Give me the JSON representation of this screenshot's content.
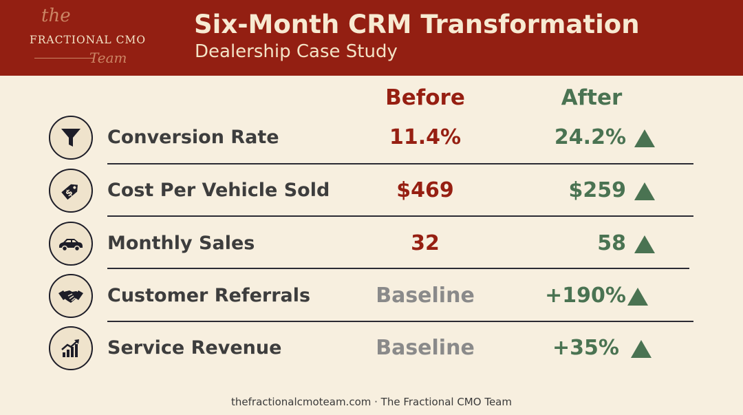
{
  "header": {
    "logo": {
      "the": "the",
      "main": "FRACTIONAL CMO",
      "team": "Team"
    },
    "title": "Six-Month CRM Transformation",
    "subtitle": "Dealership Case Study"
  },
  "columns": {
    "before": "Before",
    "after": "After"
  },
  "rows": [
    {
      "icon": "funnel-icon",
      "label": "Conversion Rate",
      "before": "11.4%",
      "after": "24.2%"
    },
    {
      "icon": "price-tag-icon",
      "label": "Cost Per Vehicle Sold",
      "before": "$469",
      "after": "$259"
    },
    {
      "icon": "car-icon",
      "label": "Monthly Sales",
      "before": "32",
      "after": "58"
    },
    {
      "icon": "handshake-icon",
      "label": "Customer Referrals",
      "before": "Baseline",
      "after": "+190%"
    },
    {
      "icon": "growth-chart-icon",
      "label": "Service Revenue",
      "before": "Baseline",
      "after": "+35%"
    }
  ],
  "footer": "thefractionalcmoteam.com · The Fractional CMO Team",
  "colors": {
    "header_bg": "#931f12",
    "background": "#f7efdf",
    "before": "#961f12",
    "after": "#4a7352",
    "baseline": "#8a8a8a"
  }
}
